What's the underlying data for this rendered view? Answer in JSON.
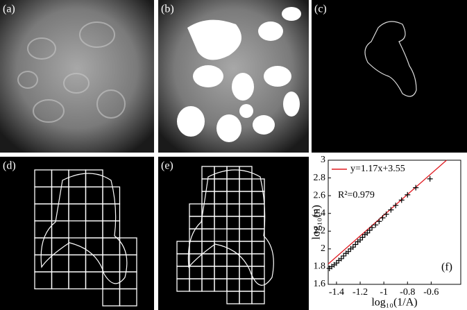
{
  "panels": [
    "(a)",
    "(b)",
    "(c)",
    "(d)",
    "(e)"
  ],
  "chart_data": {
    "type": "scatter",
    "panel_label": "(f)",
    "x_label": "log₁₀(1/A)",
    "y_label": "log₁₀(n)",
    "annotation": "R²=0.979",
    "xlim": [
      -1.47,
      -0.35
    ],
    "ylim": [
      1.6,
      3
    ],
    "xticks": [
      -1.4,
      -1.2,
      -1,
      -0.8,
      -0.6
    ],
    "yticks": [
      1.6,
      1.8,
      2,
      2.2,
      2.4,
      2.6,
      2.8,
      3
    ],
    "series": [
      {
        "name": "y=1.17x+3.55",
        "type": "line",
        "color": "#e0191f",
        "x": [
          -1.47,
          -0.47
        ],
        "values": [
          1.83,
          3.0
        ]
      },
      {
        "type": "scatter",
        "color": "#000000",
        "x": [
          -1.46,
          -1.44,
          -1.42,
          -1.4,
          -1.38,
          -1.36,
          -1.34,
          -1.32,
          -1.3,
          -1.28,
          -1.26,
          -1.24,
          -1.22,
          -1.2,
          -1.18,
          -1.16,
          -1.14,
          -1.12,
          -1.1,
          -1.07,
          -1.04,
          -1.01,
          -0.98,
          -0.94,
          -0.9,
          -0.85,
          -0.8,
          -0.73,
          -0.61
        ],
        "values": [
          1.78,
          1.8,
          1.82,
          1.84,
          1.87,
          1.89,
          1.92,
          1.95,
          1.97,
          2.0,
          2.02,
          2.05,
          2.08,
          2.1,
          2.13,
          2.16,
          2.18,
          2.21,
          2.24,
          2.27,
          2.31,
          2.35,
          2.39,
          2.44,
          2.49,
          2.55,
          2.61,
          2.69,
          2.79
        ]
      }
    ]
  }
}
